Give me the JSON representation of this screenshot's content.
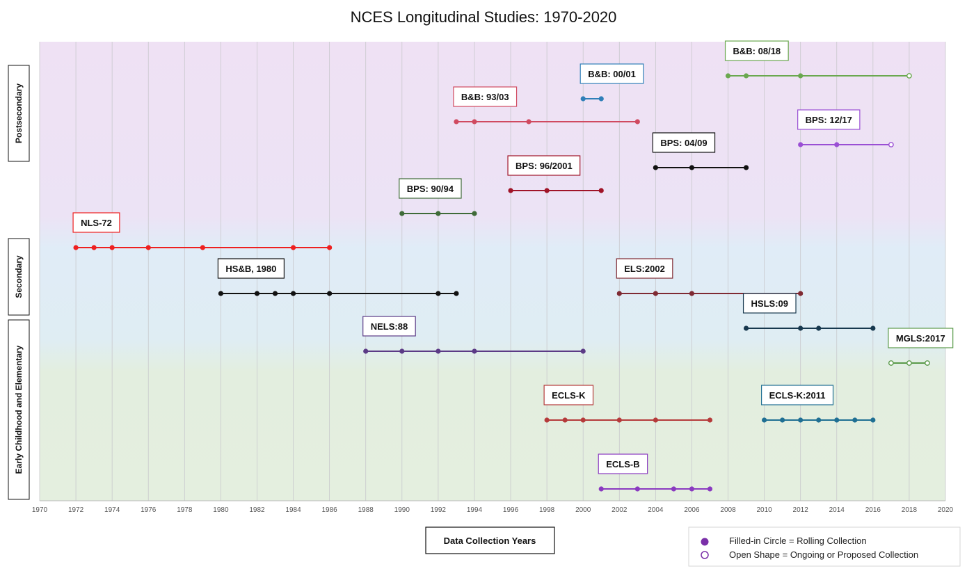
{
  "chart_data": {
    "type": "timeline",
    "title": "NCES Longitudinal Studies: 1970-2020",
    "xlabel": "Data Collection Years",
    "xlim": [
      1970,
      2020
    ],
    "x_ticks": [
      1970,
      1972,
      1974,
      1976,
      1978,
      1980,
      1982,
      1984,
      1986,
      1988,
      1990,
      1992,
      1994,
      1996,
      1998,
      2000,
      2002,
      2004,
      2006,
      2008,
      2010,
      2012,
      2014,
      2016,
      2018,
      2020
    ],
    "grid": true,
    "bands": [
      {
        "label": "Postsecondary",
        "color": "#efe0f4"
      },
      {
        "label": "Secondary",
        "color": "#dfeef6"
      },
      {
        "label": "Early Childhood and Elementary",
        "color": "#e4efdf"
      }
    ],
    "series": [
      {
        "name": "B&B: 08/18",
        "color": "#6aa84f",
        "row": 1,
        "points": [
          2008,
          2009,
          2012
        ],
        "open_points": [
          2018
        ]
      },
      {
        "name": "B&B: 00/01",
        "color": "#2f7fb8",
        "row": 2,
        "points": [
          2000,
          2001
        ],
        "open_points": []
      },
      {
        "name": "B&B: 93/03",
        "color": "#d04a60",
        "row": 3,
        "points": [
          1993,
          1994,
          1997,
          2003
        ],
        "open_points": []
      },
      {
        "name": "BPS: 12/17",
        "color": "#9a4fd4",
        "row": 4,
        "points": [
          2012,
          2014
        ],
        "open_points": [
          2017
        ]
      },
      {
        "name": "BPS: 04/09",
        "color": "#111111",
        "row": 5,
        "points": [
          2004,
          2006,
          2009
        ],
        "open_points": []
      },
      {
        "name": "BPS: 96/2001",
        "color": "#a01428",
        "row": 6,
        "points": [
          1996,
          1998,
          2001
        ],
        "open_points": []
      },
      {
        "name": "BPS: 90/94",
        "color": "#3f6b38",
        "row": 7,
        "points": [
          1990,
          1992,
          1994
        ],
        "open_points": []
      },
      {
        "name": "NLS-72",
        "color": "#ee2020",
        "row": 8,
        "points": [
          1972,
          1973,
          1974,
          1976,
          1979,
          1984,
          1986
        ],
        "open_points": []
      },
      {
        "name": "HS&B, 1980",
        "color": "#111111",
        "row": 9,
        "points": [
          1980,
          1982,
          1983,
          1984,
          1986,
          1992,
          1993
        ],
        "open_points": []
      },
      {
        "name": "ELS:2002",
        "color": "#7f2a33",
        "row": 10,
        "points": [
          2002,
          2004,
          2006,
          2012
        ],
        "open_points": []
      },
      {
        "name": "HSLS:09",
        "color": "#17384e",
        "row": 11,
        "points": [
          2009,
          2012,
          2013,
          2016
        ],
        "open_points": []
      },
      {
        "name": "NELS:88",
        "color": "#5b3a86",
        "row": 12,
        "points": [
          1988,
          1990,
          1992,
          1994,
          2000
        ],
        "open_points": []
      },
      {
        "name": "MGLS:2017",
        "color": "#5a9a4a",
        "row": 13,
        "points": [],
        "open_points": [
          2017,
          2018,
          2019
        ]
      },
      {
        "name": "ECLS-K",
        "color": "#b53a3a",
        "row": 14,
        "points": [
          1998,
          1999,
          2000,
          2002,
          2004,
          2007
        ],
        "open_points": []
      },
      {
        "name": "ECLS-K:2011",
        "color": "#1f6f93",
        "row": 15,
        "points": [
          2010,
          2011,
          2012,
          2013,
          2014,
          2015,
          2016
        ],
        "open_points": []
      },
      {
        "name": "ECLS-B",
        "color": "#8a3ac0",
        "row": 16,
        "points": [
          2001,
          2003,
          2005,
          2006,
          2007
        ],
        "open_points": []
      }
    ],
    "legend": {
      "placement": "bottom-right",
      "entries": [
        {
          "label": "Filled-in Circle = Rolling Collection",
          "marker": "filled-circle",
          "color": "#7a2fa8"
        },
        {
          "label": "Open Shape = Ongoing or Proposed Collection",
          "marker": "open-circle",
          "color": "#7a2fa8"
        }
      ]
    }
  }
}
